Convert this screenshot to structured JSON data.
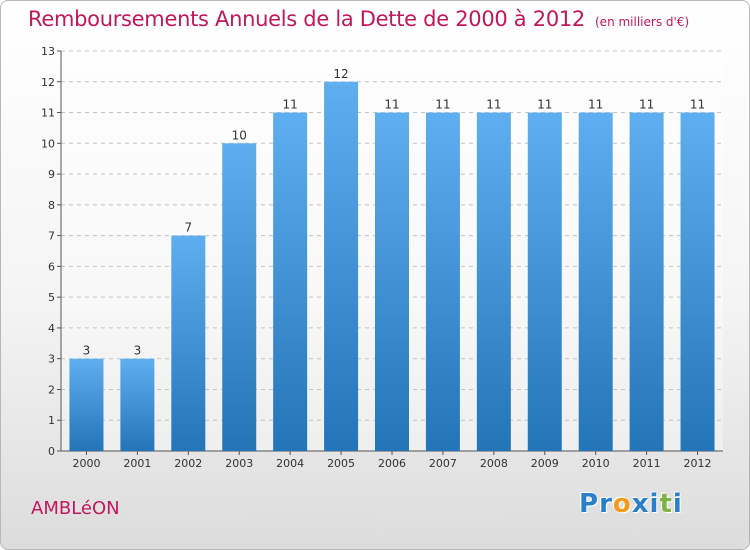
{
  "chart_data": {
    "type": "bar",
    "title": "Remboursements Annuels de la Dette de 2000 à 2012",
    "subtitle": "(en milliers d'€)",
    "categories": [
      "2000",
      "2001",
      "2002",
      "2003",
      "2004",
      "2005",
      "2006",
      "2007",
      "2008",
      "2009",
      "2010",
      "2011",
      "2012"
    ],
    "values": [
      3,
      3,
      7,
      10,
      11,
      12,
      11,
      11,
      11,
      11,
      11,
      11,
      11
    ],
    "ylim": [
      0,
      13
    ],
    "yticks": [
      0,
      1,
      2,
      3,
      4,
      5,
      6,
      7,
      8,
      9,
      10,
      11,
      12,
      13
    ],
    "xlabel": "",
    "ylabel": "",
    "grid": true,
    "bar_color": "#3a8fd6"
  },
  "footer": {
    "commune": "AMBLéON",
    "brand_letters": [
      "P",
      "r",
      "o",
      "x",
      "i",
      "t",
      "i"
    ],
    "brand_colors": [
      "#2a80c8",
      "#2a80c8",
      "#f29a1d",
      "#2a80c8",
      "#2a80c8",
      "#7cb342",
      "#2a80c8"
    ]
  }
}
